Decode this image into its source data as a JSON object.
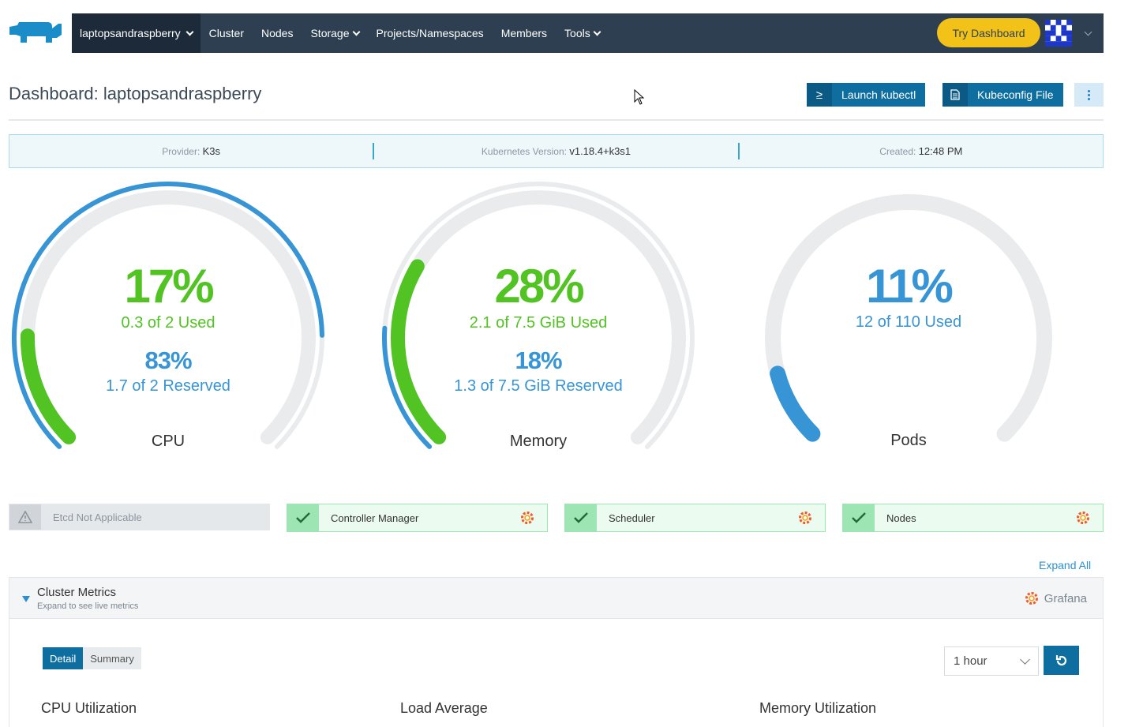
{
  "nav": {
    "cluster_name": "laptopsandraspberry",
    "items": [
      {
        "label": "Cluster",
        "dropdown": false
      },
      {
        "label": "Nodes",
        "dropdown": false
      },
      {
        "label": "Storage",
        "dropdown": true
      },
      {
        "label": "Projects/Namespaces",
        "dropdown": false
      },
      {
        "label": "Members",
        "dropdown": false
      },
      {
        "label": "Tools",
        "dropdown": true
      }
    ],
    "try_dashboard": "Try Dashboard"
  },
  "page": {
    "title": "Dashboard: laptopsandraspberry",
    "launch_kubectl": "Launch kubectl",
    "kubeconfig": "Kubeconfig File"
  },
  "info": {
    "provider_label": "Provider:",
    "provider": "K3s",
    "k8s_label": "Kubernetes Version:",
    "k8s_version": "v1.18.4+k3s1",
    "created_label": "Created:",
    "created": "12:48 PM"
  },
  "gauges": {
    "cpu": {
      "used_pct": "17%",
      "used_text": "0.3 of 2 Used",
      "reserved_pct": "83%",
      "reserved_text": "1.7 of 2 Reserved",
      "label": "CPU",
      "used_frac": 0.17,
      "reserved_frac": 0.83
    },
    "memory": {
      "used_pct": "28%",
      "used_text": "2.1 of 7.5 GiB Used",
      "reserved_pct": "18%",
      "reserved_text": "1.3 of 7.5 GiB Reserved",
      "label": "Memory",
      "used_frac": 0.28,
      "reserved_frac": 0.18
    },
    "pods": {
      "used_pct": "11%",
      "used_text": "12 of 110 Used",
      "label": "Pods",
      "used_frac": 0.11
    }
  },
  "status": {
    "etcd": "Etcd Not Applicable",
    "controller": "Controller Manager",
    "scheduler": "Scheduler",
    "nodes": "Nodes"
  },
  "metrics": {
    "expand_all": "Expand All",
    "title": "Cluster Metrics",
    "subtitle": "Expand to see live metrics",
    "grafana": "Grafana",
    "tab_detail": "Detail",
    "tab_summary": "Summary",
    "range": "1 hour",
    "chart_cpu": "CPU Utilization",
    "chart_load": "Load Average",
    "chart_mem": "Memory Utilization"
  },
  "colors": {
    "nav_bg": "#2e3f52",
    "accent_blue": "#0f6ea0",
    "used_green": "#51c322",
    "reserved_blue": "#3795d6",
    "try_yellow": "#f2c218"
  }
}
